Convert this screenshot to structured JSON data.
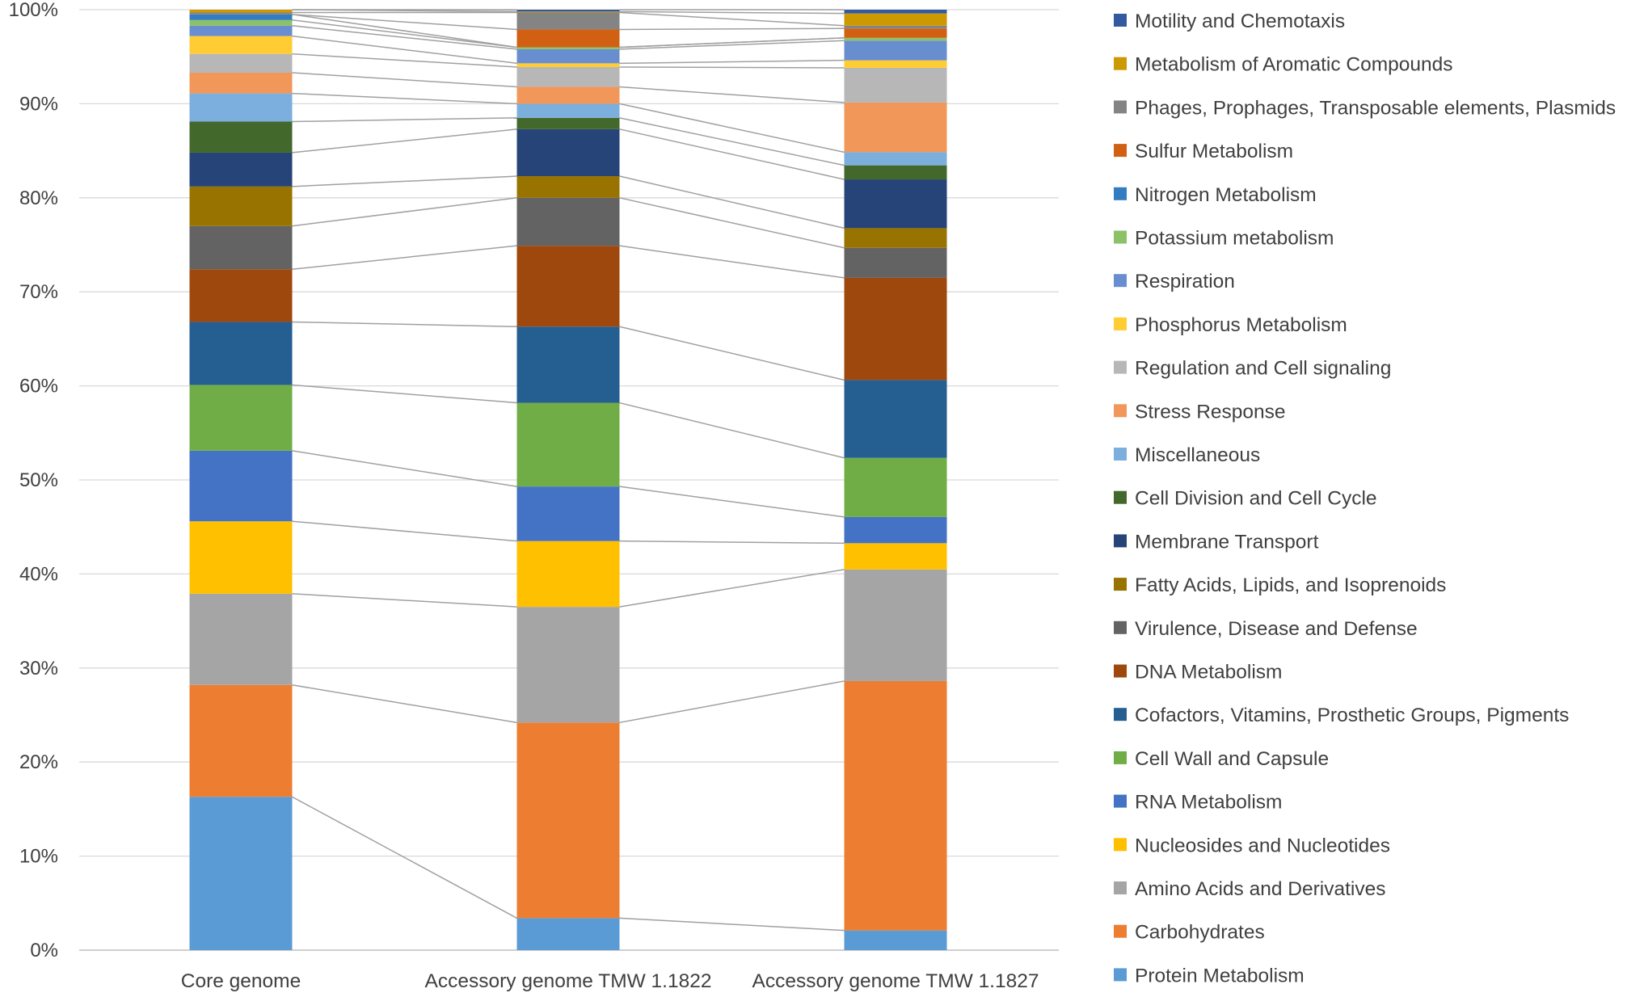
{
  "chart_data": {
    "type": "bar",
    "stacked": true,
    "percent": true,
    "title": "",
    "xlabel": "",
    "ylabel": "",
    "ylim": [
      0,
      100
    ],
    "yticks": [
      "0%",
      "10%",
      "20%",
      "30%",
      "40%",
      "50%",
      "60%",
      "70%",
      "80%",
      "90%",
      "100%"
    ],
    "grid": true,
    "legend_position": "right",
    "series_lines": true,
    "categories": [
      "Core genome",
      "Accessory genome TMW 1.1822",
      "Accessory genome TMW 1.1827"
    ],
    "series": [
      {
        "name": "Protein Metabolism",
        "color": "#5b9bd5",
        "values": [
          16.3,
          3.4,
          2.1
        ]
      },
      {
        "name": "Carbohydrates",
        "color": "#ed7d31",
        "values": [
          11.9,
          20.8,
          26.6
        ]
      },
      {
        "name": "Amino Acids and Derivatives",
        "color": "#a5a5a5",
        "values": [
          9.7,
          12.3,
          11.9
        ]
      },
      {
        "name": "Nucleosides and Nucleotides",
        "color": "#ffc000",
        "values": [
          7.7,
          7.0,
          2.8
        ]
      },
      {
        "name": "RNA Metabolism",
        "color": "#4472c4",
        "values": [
          7.5,
          5.8,
          2.8
        ]
      },
      {
        "name": "Cell Wall and Capsule",
        "color": "#70ad47",
        "values": [
          7.0,
          8.9,
          6.3
        ]
      },
      {
        "name": "Cofactors, Vitamins, Prosthetic Groups, Pigments",
        "color": "#255e91",
        "values": [
          6.7,
          8.1,
          8.3
        ]
      },
      {
        "name": "DNA Metabolism",
        "color": "#9e480e",
        "values": [
          5.6,
          8.6,
          10.9
        ]
      },
      {
        "name": "Virulence, Disease and Defense",
        "color": "#636363",
        "values": [
          4.6,
          5.1,
          3.2
        ]
      },
      {
        "name": "Fatty Acids, Lipids, and Isoprenoids",
        "color": "#997300",
        "values": [
          4.2,
          2.3,
          2.1
        ]
      },
      {
        "name": "Membrane Transport",
        "color": "#264478",
        "values": [
          3.6,
          5.0,
          5.2
        ]
      },
      {
        "name": "Cell Division and Cell Cycle",
        "color": "#43682b",
        "values": [
          3.3,
          1.2,
          1.5
        ]
      },
      {
        "name": "Miscellaneous",
        "color": "#7cafdd",
        "values": [
          3.0,
          1.5,
          1.4
        ]
      },
      {
        "name": "Stress Response",
        "color": "#f1975a",
        "values": [
          2.2,
          1.8,
          5.3
        ]
      },
      {
        "name": "Regulation and Cell signaling",
        "color": "#b7b7b7",
        "values": [
          2.0,
          2.1,
          3.7
        ]
      },
      {
        "name": "Phosphorus Metabolism",
        "color": "#ffcd33",
        "values": [
          1.9,
          0.4,
          0.8
        ]
      },
      {
        "name": "Respiration",
        "color": "#698ed0",
        "values": [
          1.1,
          1.5,
          2.1
        ]
      },
      {
        "name": "Potassium metabolism",
        "color": "#8cc168",
        "values": [
          0.6,
          0.2,
          0.3
        ]
      },
      {
        "name": "Nitrogen Metabolism",
        "color": "#327dc2",
        "values": [
          0.6,
          0.0,
          0.0
        ]
      },
      {
        "name": "Sulfur Metabolism",
        "color": "#d26012",
        "values": [
          0.0,
          1.9,
          1.0
        ]
      },
      {
        "name": "Phages, Prophages, Transposable elements, Plasmids",
        "color": "#848484",
        "values": [
          0.2,
          1.8,
          0.3
        ]
      },
      {
        "name": "Metabolism of Aromatic Compounds",
        "color": "#cc9a00",
        "values": [
          0.3,
          0.1,
          1.3
        ]
      },
      {
        "name": "Motility and Chemotaxis",
        "color": "#335aa1",
        "values": [
          0.0,
          0.2,
          0.4
        ]
      }
    ]
  }
}
